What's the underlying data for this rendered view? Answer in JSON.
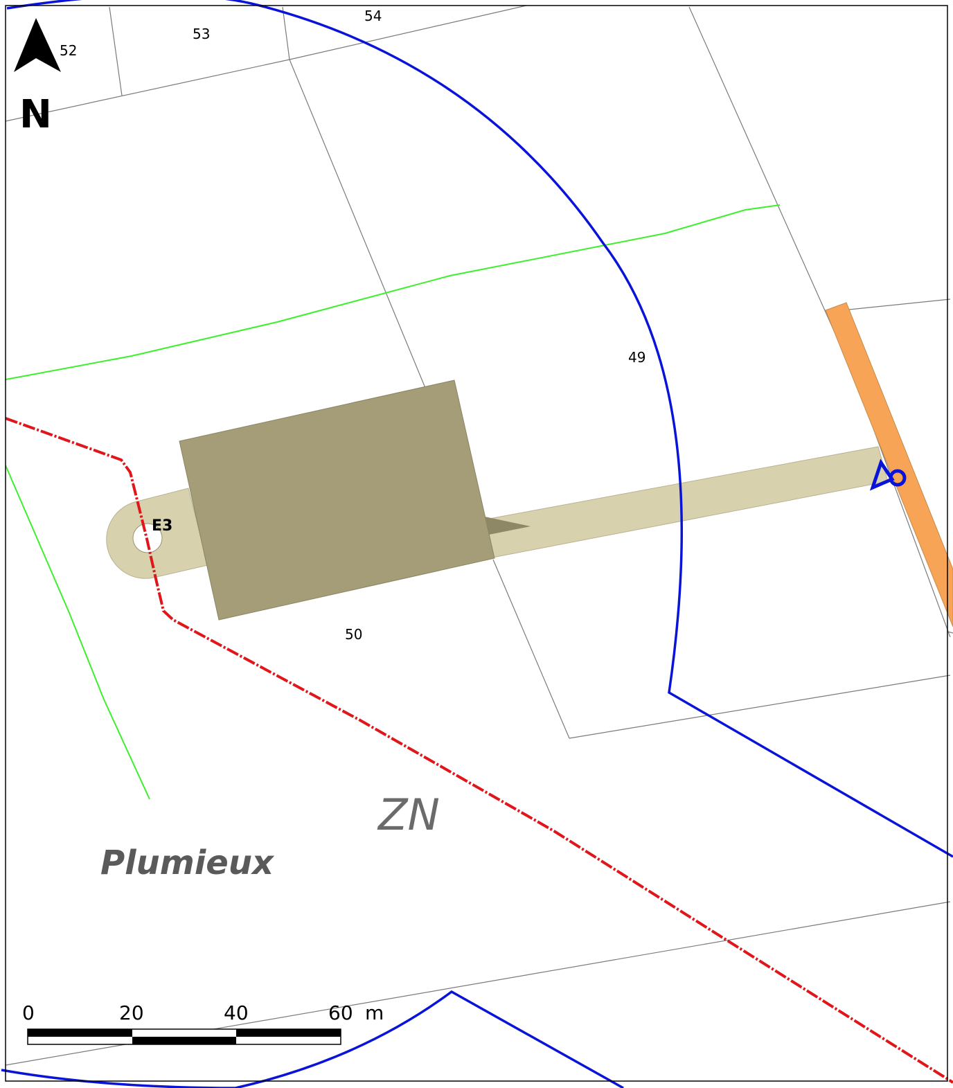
{
  "map": {
    "parcels": [
      "52",
      "53",
      "54",
      "49",
      "50"
    ],
    "turbine": {
      "label": "E3"
    },
    "section": "ZN",
    "commune": "Plumieux",
    "north_arrow": {
      "letter": "N"
    },
    "scale_bar": {
      "ticks": [
        "0",
        "20",
        "40",
        "60"
      ],
      "unit": "m"
    }
  },
  "colors": {
    "buffer_line": "#0a14d8",
    "commune_boundary": "#e0161b",
    "hedge": "#3cf02c",
    "platform": "#a49d77",
    "access_road": "#d7d1ad",
    "orange_road": "#f7a457",
    "parcel_line": "#7a7a7a"
  }
}
